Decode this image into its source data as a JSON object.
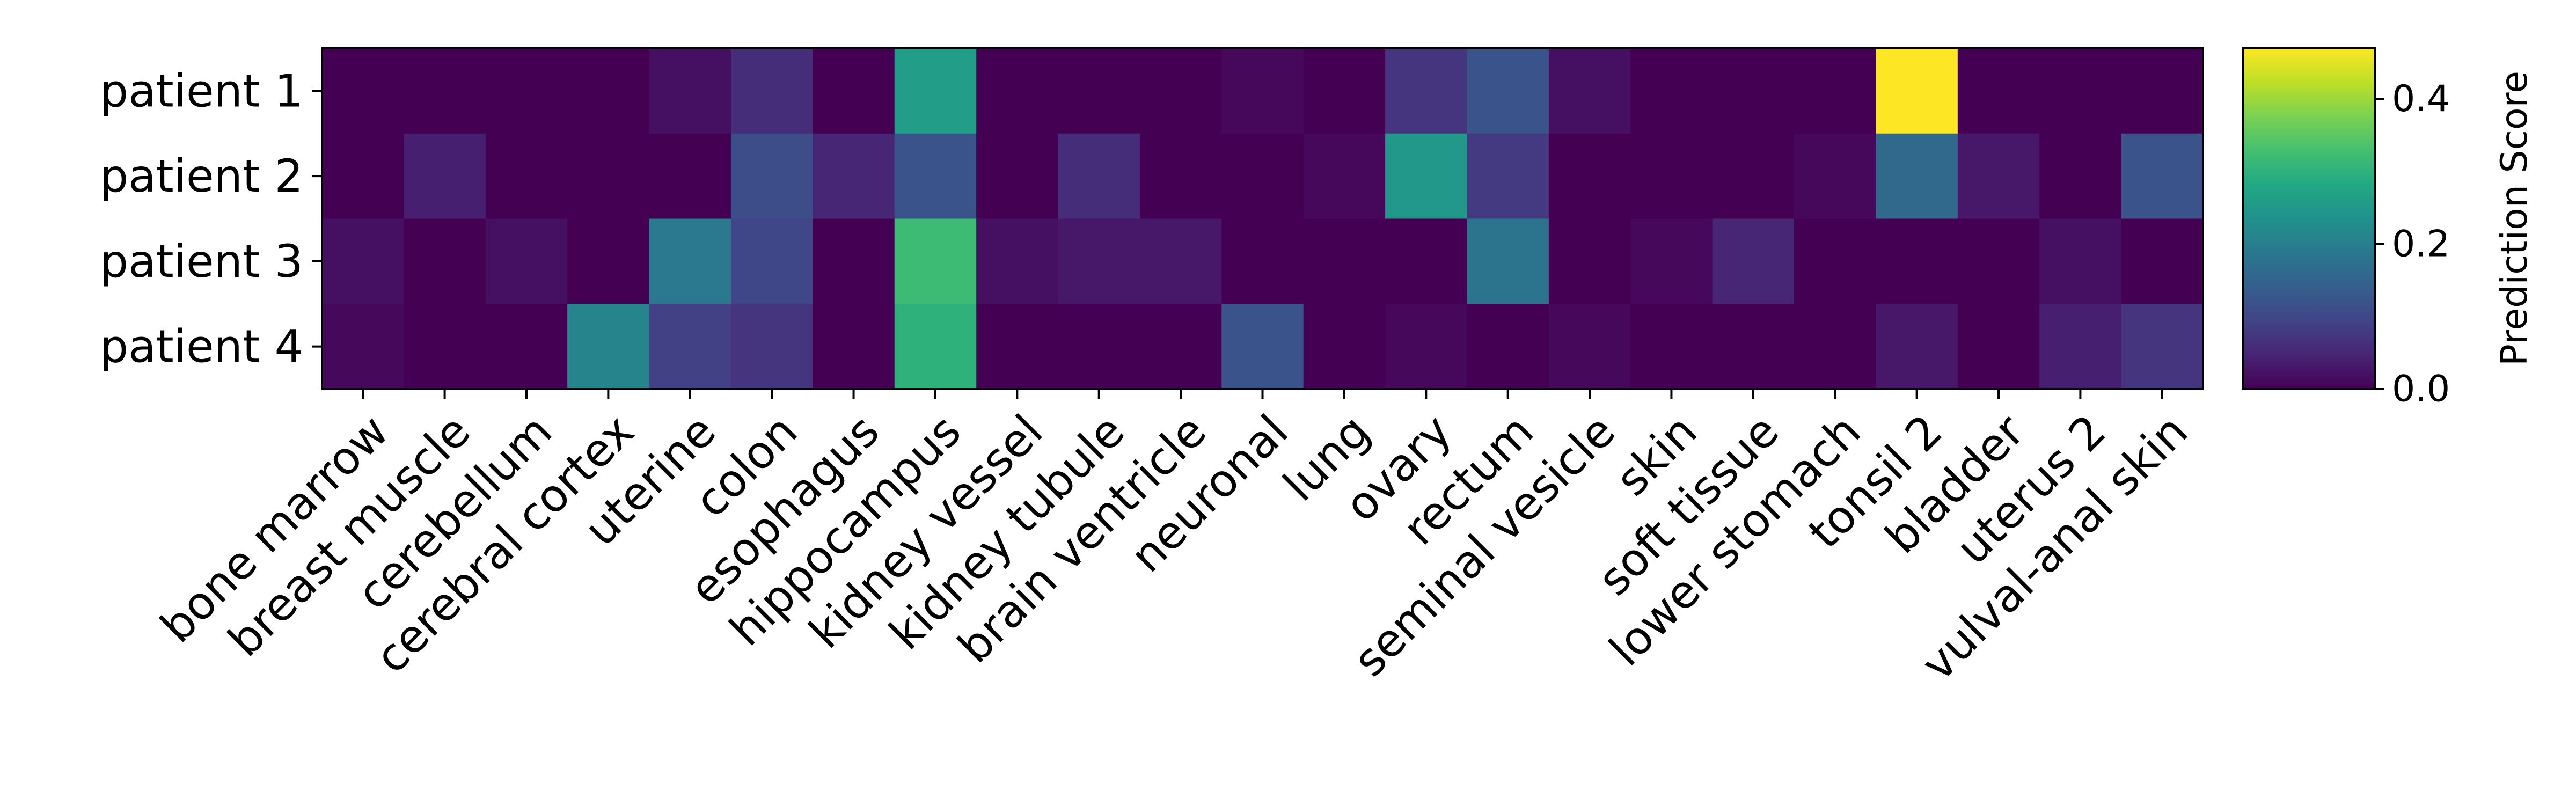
{
  "chart_data": {
    "type": "heatmap",
    "rows": [
      "patient 1",
      "patient 2",
      "patient 3",
      "patient 4"
    ],
    "columns": [
      "bone marrow",
      "breast muscle",
      "cerebellum",
      "cerebral cortex",
      "uterine",
      "colon",
      "esophagus",
      "hippocampus",
      "kidney vessel",
      "kidney tubule",
      "brain ventricle",
      "neuronal",
      "lung",
      "ovary",
      "rectum",
      "seminal vesicle",
      "skin",
      "soft tissue",
      "lower stomach",
      "tonsil 2",
      "bladder",
      "uterus 2",
      "vulval-anal skin"
    ],
    "values": [
      [
        0.0,
        0.0,
        0.0,
        0.0,
        0.02,
        0.06,
        0.0,
        0.26,
        0.0,
        0.0,
        0.0,
        0.01,
        0.0,
        0.07,
        0.12,
        0.02,
        0.0,
        0.0,
        0.0,
        0.47,
        0.0,
        0.0,
        0.0
      ],
      [
        0.0,
        0.04,
        0.0,
        0.0,
        0.0,
        0.11,
        0.05,
        0.12,
        0.0,
        0.06,
        0.0,
        0.0,
        0.01,
        0.25,
        0.08,
        0.0,
        0.0,
        0.0,
        0.01,
        0.16,
        0.03,
        0.0,
        0.12
      ],
      [
        0.02,
        0.0,
        0.02,
        0.0,
        0.19,
        0.1,
        0.0,
        0.32,
        0.02,
        0.03,
        0.03,
        0.0,
        0.0,
        0.0,
        0.18,
        0.0,
        0.01,
        0.05,
        0.0,
        0.0,
        0.0,
        0.02,
        0.0
      ],
      [
        0.01,
        0.0,
        0.0,
        0.21,
        0.09,
        0.07,
        0.0,
        0.3,
        0.0,
        0.0,
        0.0,
        0.12,
        0.0,
        0.01,
        0.0,
        0.01,
        0.0,
        0.0,
        0.0,
        0.03,
        0.0,
        0.04,
        0.07
      ]
    ],
    "colormap": "viridis",
    "vmin": 0.0,
    "vmax": 0.47,
    "colorbar": {
      "label": "Prediction Score",
      "ticks": [
        0.0,
        0.2,
        0.4
      ],
      "tick_labels": [
        "0.0",
        "0.2",
        "0.4"
      ]
    },
    "title": "",
    "xlabel": "",
    "ylabel": ""
  }
}
